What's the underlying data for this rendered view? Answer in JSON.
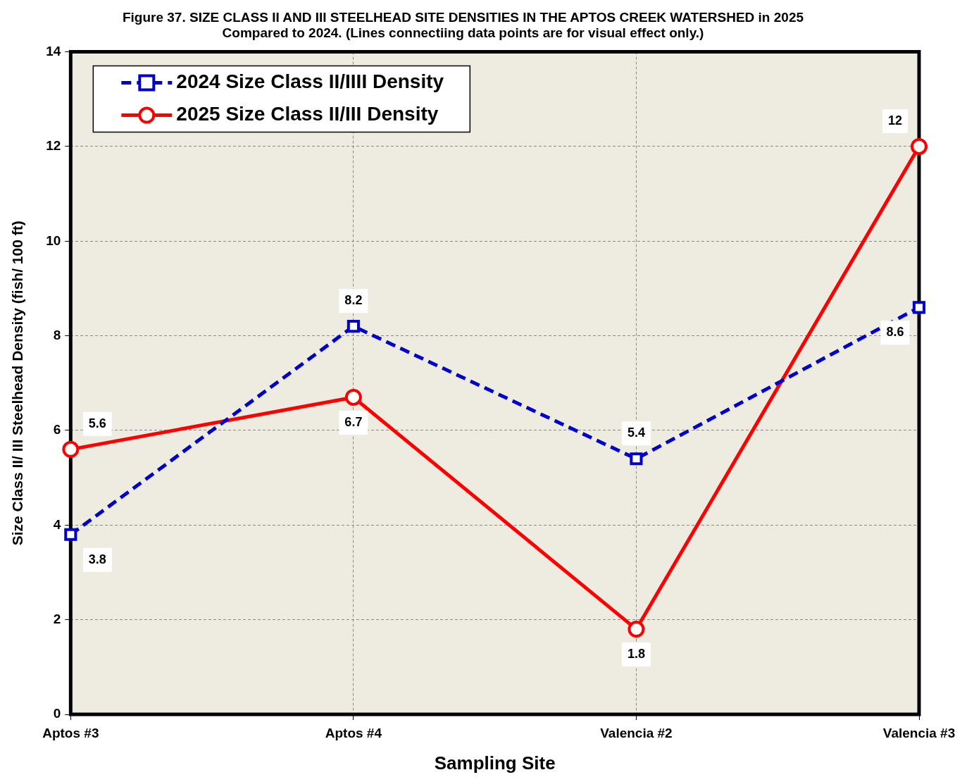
{
  "chart_data": {
    "type": "line",
    "title": "Figure 37. SIZE CLASS II AND III STEELHEAD SITE DENSITIES IN THE APTOS CREEK WATERSHED in 2025\nCompared to 2024. (Lines connectiing data points are for visual effect only.)",
    "xlabel": "Sampling Site",
    "ylabel": "Size Class II/ III Steelhead Density (fish/ 100 ft)",
    "categories": [
      "Aptos #3",
      "Aptos #4",
      "Valencia #2",
      "Valencia #3"
    ],
    "series": [
      {
        "name": "2024 Size Class II/IIII Density",
        "color": "#0000cc",
        "values": [
          3.8,
          8.2,
          5.4,
          8.6
        ],
        "marker": "square",
        "line_style": "dashed"
      },
      {
        "name": "2025 Size Class II/III Density",
        "color": "#ff0000",
        "values": [
          5.6,
          6.7,
          1.8,
          12
        ],
        "marker": "circle",
        "line_style": "solid"
      }
    ],
    "ylim": [
      0,
      14
    ],
    "yticks": [
      0,
      2,
      4,
      6,
      8,
      10,
      12,
      14
    ],
    "grid": true,
    "legend": "top left",
    "data_labels": true
  }
}
